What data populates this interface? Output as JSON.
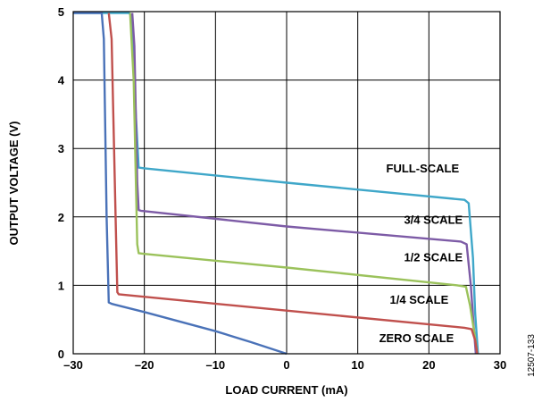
{
  "chart_data": {
    "type": "line",
    "title": "",
    "xlabel": "LOAD CURRENT (mA)",
    "ylabel": "OUTPUT VOLTAGE (V)",
    "xlim": [
      -30,
      30
    ],
    "ylim": [
      0,
      5
    ],
    "x_ticks": [
      -30,
      -20,
      -10,
      0,
      10,
      20,
      30
    ],
    "x_tick_labels": [
      "–30",
      "–20",
      "–10",
      "0",
      "10",
      "20",
      "30"
    ],
    "y_ticks": [
      0,
      1,
      2,
      3,
      4,
      5
    ],
    "y_tick_labels": [
      "0",
      "1",
      "2",
      "3",
      "4",
      "5"
    ],
    "grid": true,
    "figure_id": "12507-133",
    "series": [
      {
        "name": "FULL-SCALE",
        "color": "#3fa7c9",
        "points": [
          [
            -30,
            4.98
          ],
          [
            -22.2,
            4.98
          ],
          [
            -21.8,
            4.95
          ],
          [
            -21.2,
            3.5
          ],
          [
            -20.8,
            2.72
          ],
          [
            -20,
            2.71
          ],
          [
            0,
            2.5
          ],
          [
            25,
            2.25
          ],
          [
            25.6,
            2.2
          ],
          [
            26.2,
            1.4
          ],
          [
            26.5,
            0.6
          ],
          [
            26.9,
            0
          ]
        ]
      },
      {
        "name": "3/4 SCALE",
        "color": "#7d5ba6",
        "points": [
          [
            -21.7,
            4.98
          ],
          [
            -21.4,
            4.5
          ],
          [
            -21.0,
            2.5
          ],
          [
            -20.8,
            2.1
          ],
          [
            -20.5,
            2.09
          ],
          [
            0,
            1.86
          ],
          [
            24.5,
            1.64
          ],
          [
            25.3,
            1.6
          ],
          [
            25.9,
            1.0
          ],
          [
            26.3,
            0.4
          ],
          [
            26.6,
            0
          ]
        ]
      },
      {
        "name": "1/2 SCALE",
        "color": "#9bc25b",
        "points": [
          [
            -22,
            4.98
          ],
          [
            -21.5,
            4.0
          ],
          [
            -21.0,
            1.6
          ],
          [
            -20.8,
            1.47
          ],
          [
            -20,
            1.46
          ],
          [
            0,
            1.26
          ],
          [
            24,
            1.0
          ],
          [
            25.2,
            0.98
          ],
          [
            25.8,
            0.7
          ],
          [
            26.4,
            0.3
          ],
          [
            26.8,
            0
          ]
        ]
      },
      {
        "name": "1/4 SCALE",
        "color": "#c0504d",
        "points": [
          [
            -25,
            4.98
          ],
          [
            -24.6,
            4.6
          ],
          [
            -24.0,
            1.8
          ],
          [
            -23.8,
            0.9
          ],
          [
            -23.6,
            0.87
          ],
          [
            0,
            0.63
          ],
          [
            25,
            0.38
          ],
          [
            26,
            0.36
          ],
          [
            26.5,
            0.2
          ],
          [
            26.8,
            0
          ]
        ]
      },
      {
        "name": "ZERO SCALE",
        "color": "#4a72b8",
        "points": [
          [
            -30,
            4.98
          ],
          [
            -26.0,
            4.98
          ],
          [
            -25.7,
            4.6
          ],
          [
            -25.3,
            2.0
          ],
          [
            -25.0,
            0.75
          ],
          [
            -24.6,
            0.73
          ],
          [
            -20,
            0.61
          ],
          [
            -10,
            0.33
          ],
          [
            -5,
            0.17
          ],
          [
            0,
            0.0
          ]
        ]
      }
    ],
    "annotations": [
      {
        "text": "FULL-SCALE",
        "x": 14,
        "y": 2.65
      },
      {
        "text": "3/4 SCALE",
        "x": 16.5,
        "y": 1.9
      },
      {
        "text": "1/2 SCALE",
        "x": 16.5,
        "y": 1.35
      },
      {
        "text": "1/4 SCALE",
        "x": 14.5,
        "y": 0.73
      },
      {
        "text": "ZERO SCALE",
        "x": 13,
        "y": 0.17
      }
    ]
  }
}
